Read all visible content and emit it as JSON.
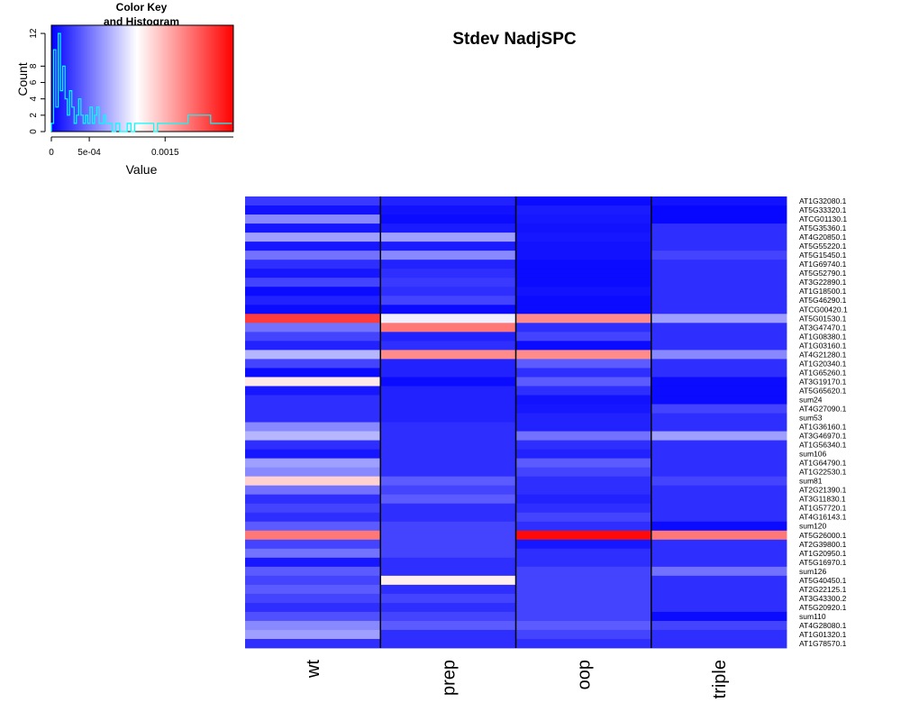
{
  "chart_data": {
    "type": "heatmap",
    "title": "Stdev NadjSPC",
    "columns": [
      "wt",
      "prep",
      "oop",
      "triple"
    ],
    "rows": [
      "AT1G32080.1",
      "AT5G33320.1",
      "ATCG01130.1",
      "AT5G35360.1",
      "AT4G20850.1",
      "AT5G55220.1",
      "AT5G15450.1",
      "AT1G69740.1",
      "AT5G52790.1",
      "AT3G22890.1",
      "AT1G18500.1",
      "AT5G46290.1",
      "ATCG00420.1",
      "AT5G01530.1",
      "AT3G47470.1",
      "AT1G08380.1",
      "AT1G03160.1",
      "AT4G21280.1",
      "AT1G20340.1",
      "AT1G65260.1",
      "AT3G19170.1",
      "AT5G65620.1",
      "sum24",
      "AT4G27090.1",
      "sum53",
      "AT1G36160.1",
      "AT3G46970.1",
      "AT1G56340.1",
      "sum106",
      "AT1G64790.1",
      "AT1G22530.1",
      "sum81",
      "AT2G21390.1",
      "AT3G11830.1",
      "AT1G57720.1",
      "AT4G16143.1",
      "sum120",
      "AT5G26000.1",
      "AT2G39800.1",
      "AT1G20950.1",
      "AT5G16970.1",
      "sum126",
      "AT5G40450.1",
      "AT2G22125.1",
      "AT3G43300.2",
      "AT5G20920.1",
      "sum110",
      "AT4G28080.1",
      "AT1G01320.1",
      "AT1G78570.1"
    ],
    "values": [
      [
        0.00025,
        0.00015,
        5e-05,
        8e-05
      ],
      [
        8e-05,
        8e-05,
        0.00012,
        3e-05
      ],
      [
        0.0006,
        5e-05,
        0.0001,
        3e-05
      ],
      [
        0.0001,
        0.00012,
        8e-05,
        0.0002
      ],
      [
        0.0007,
        0.0007,
        0.0001,
        0.0002
      ],
      [
        0.0001,
        0.00012,
        8e-05,
        0.0002
      ],
      [
        0.0005,
        0.0006,
        8e-05,
        0.0003
      ],
      [
        0.0002,
        0.00015,
        5e-05,
        0.0002
      ],
      [
        0.0001,
        0.0002,
        5e-05,
        0.0002
      ],
      [
        0.0003,
        0.00025,
        5e-05,
        0.0002
      ],
      [
        5e-05,
        0.0002,
        8e-05,
        0.0002
      ],
      [
        0.00015,
        0.0003,
        5e-05,
        0.0002
      ],
      [
        5e-05,
        5e-05,
        5e-05,
        0.0002
      ],
      [
        0.0021,
        0.00105,
        0.0017,
        0.0007
      ],
      [
        0.0005,
        0.0018,
        0.0002,
        0.0002
      ],
      [
        0.0003,
        0.00015,
        0.0003,
        0.0002
      ],
      [
        0.00015,
        0.0002,
        5e-05,
        0.0002
      ],
      [
        0.0008,
        0.0017,
        0.0017,
        0.0006
      ],
      [
        0.0003,
        0.00015,
        0.0004,
        0.0002
      ],
      [
        5e-05,
        0.00015,
        0.0002,
        0.0002
      ],
      [
        0.00123,
        5e-05,
        0.0004,
        5e-05
      ],
      [
        0.0001,
        0.00015,
        0.0002,
        5e-05
      ],
      [
        0.0002,
        0.00015,
        8e-05,
        5e-05
      ],
      [
        0.0002,
        0.00015,
        0.0001,
        0.0003
      ],
      [
        0.0002,
        0.00015,
        0.00015,
        0.0002
      ],
      [
        0.0006,
        0.0002,
        0.00015,
        0.0002
      ],
      [
        0.0008,
        0.0002,
        0.0005,
        0.0007
      ],
      [
        0.0002,
        0.0002,
        0.0002,
        0.0002
      ],
      [
        0.0001,
        0.0002,
        0.00015,
        0.0002
      ],
      [
        0.0007,
        0.0002,
        0.0004,
        0.0002
      ],
      [
        0.0006,
        0.0002,
        0.0003,
        0.0002
      ],
      [
        0.00135,
        0.0004,
        0.0002,
        0.0003
      ],
      [
        0.0005,
        0.0003,
        0.0002,
        0.0002
      ],
      [
        0.0002,
        0.0004,
        0.00015,
        0.0002
      ],
      [
        0.0003,
        0.0002,
        0.0002,
        0.0002
      ],
      [
        0.0002,
        0.0002,
        0.0003,
        0.0002
      ],
      [
        0.0004,
        0.0003,
        0.0002,
        5e-05
      ],
      [
        0.0018,
        0.0003,
        0.00235,
        0.0018
      ],
      [
        0.0003,
        0.0003,
        0.0001,
        0.0002
      ],
      [
        0.0005,
        0.0003,
        0.0002,
        0.0002
      ],
      [
        0.0001,
        0.0002,
        0.0002,
        0.0002
      ],
      [
        0.0004,
        0.0002,
        0.0003,
        0.0005
      ],
      [
        0.0003,
        0.0012,
        0.0003,
        0.0002
      ],
      [
        0.0004,
        0.0002,
        0.0003,
        0.0002
      ],
      [
        0.0003,
        0.0003,
        0.0003,
        0.0002
      ],
      [
        0.0002,
        0.0002,
        0.0003,
        0.0002
      ],
      [
        0.00035,
        0.0003,
        0.0003,
        5e-05
      ],
      [
        0.0006,
        0.0004,
        0.0004,
        0.0003
      ],
      [
        0.0007,
        0.0002,
        0.0003,
        0.0002
      ],
      [
        0.0002,
        0.0002,
        0.0002,
        0.0002
      ]
    ],
    "color_scale": {
      "range": [
        0,
        0.0024
      ],
      "low": "#0000ff",
      "mid": "#ffffff",
      "high": "#ff0000",
      "midpoint": 0.00112
    },
    "color_key": {
      "title_line1": "Color Key",
      "title_line2": "and Histogram",
      "xlabel": "Value",
      "ylabel": "Count",
      "x_ticks": [
        {
          "value": 0,
          "label": "0"
        },
        {
          "value": 0.0005,
          "label": "5e-04"
        },
        {
          "value": 0.0015,
          "label": "0.0015"
        }
      ],
      "y_ticks": [
        0,
        2,
        4,
        6,
        8,
        12
      ],
      "ylim": [
        0,
        13
      ],
      "hist_color": "#00ffff",
      "hist_x": [
        0,
        3e-05,
        6e-05,
        9e-05,
        0.00012,
        0.00015,
        0.00018,
        0.00021,
        0.00024,
        0.00027,
        0.0003,
        0.00033,
        0.00036,
        0.00039,
        0.00042,
        0.00045,
        0.00048,
        0.00051,
        0.00054,
        0.00057,
        0.0006,
        0.00063,
        0.00066,
        0.00069,
        0.00072,
        0.00075,
        0.0008,
        0.00085,
        0.0009,
        0.001,
        0.00105,
        0.0011,
        0.0012,
        0.00135,
        0.0014,
        0.00165,
        0.00175,
        0.0018,
        0.0021,
        0.00235
      ],
      "hist_y": [
        1,
        10,
        3,
        12,
        5,
        8,
        4,
        2,
        5,
        3,
        1,
        2,
        4,
        2,
        1,
        2,
        1,
        3,
        1,
        2,
        3,
        1,
        1,
        2,
        1,
        1,
        0,
        1,
        0,
        1,
        0,
        1,
        1,
        0,
        1,
        1,
        1,
        2,
        1,
        1
      ]
    }
  }
}
